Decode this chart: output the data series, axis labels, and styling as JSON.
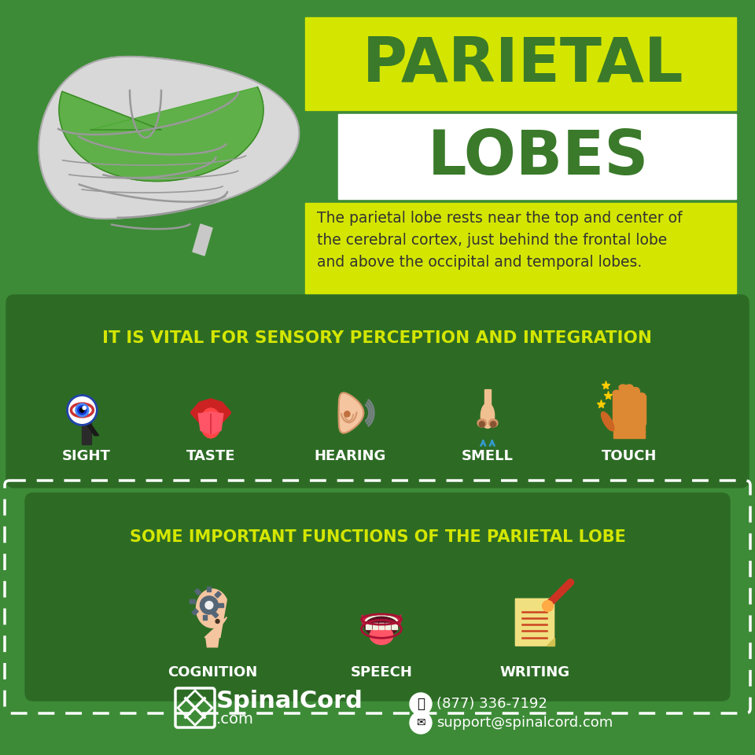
{
  "bg_color": "#3d8b37",
  "title1": "PARIETAL",
  "title2": "LOBES",
  "title1_bg": "#d4e600",
  "title2_bg": "#ffffff",
  "title_color": "#3a7a2a",
  "description": "The parietal lobe rests near the top and center of\nthe cerebral cortex, just behind the frontal lobe\nand above the occipital and temporal lobes.",
  "desc_bg": "#d4e600",
  "desc_color": "#333333",
  "section1_bg": "#2d6b25",
  "section1_title": "IT IS VITAL FOR SENSORY PERCEPTION AND INTEGRATION",
  "section1_title_color": "#d4e600",
  "senses": [
    "SIGHT",
    "TASTE",
    "HEARING",
    "SMELL",
    "TOUCH"
  ],
  "senses_color": "#ffffff",
  "section2_title": "SOME IMPORTANT FUNCTIONS OF THE PARIETAL LOBE",
  "section2_title_color": "#d4e600",
  "functions": [
    "COGNITION",
    "SPEECH",
    "WRITING"
  ],
  "functions_color": "#ffffff",
  "brand_name": "SpinalCord",
  "brand_domain": ".com",
  "phone": "(877) 336-7192",
  "email": "support@spinalcord.com"
}
